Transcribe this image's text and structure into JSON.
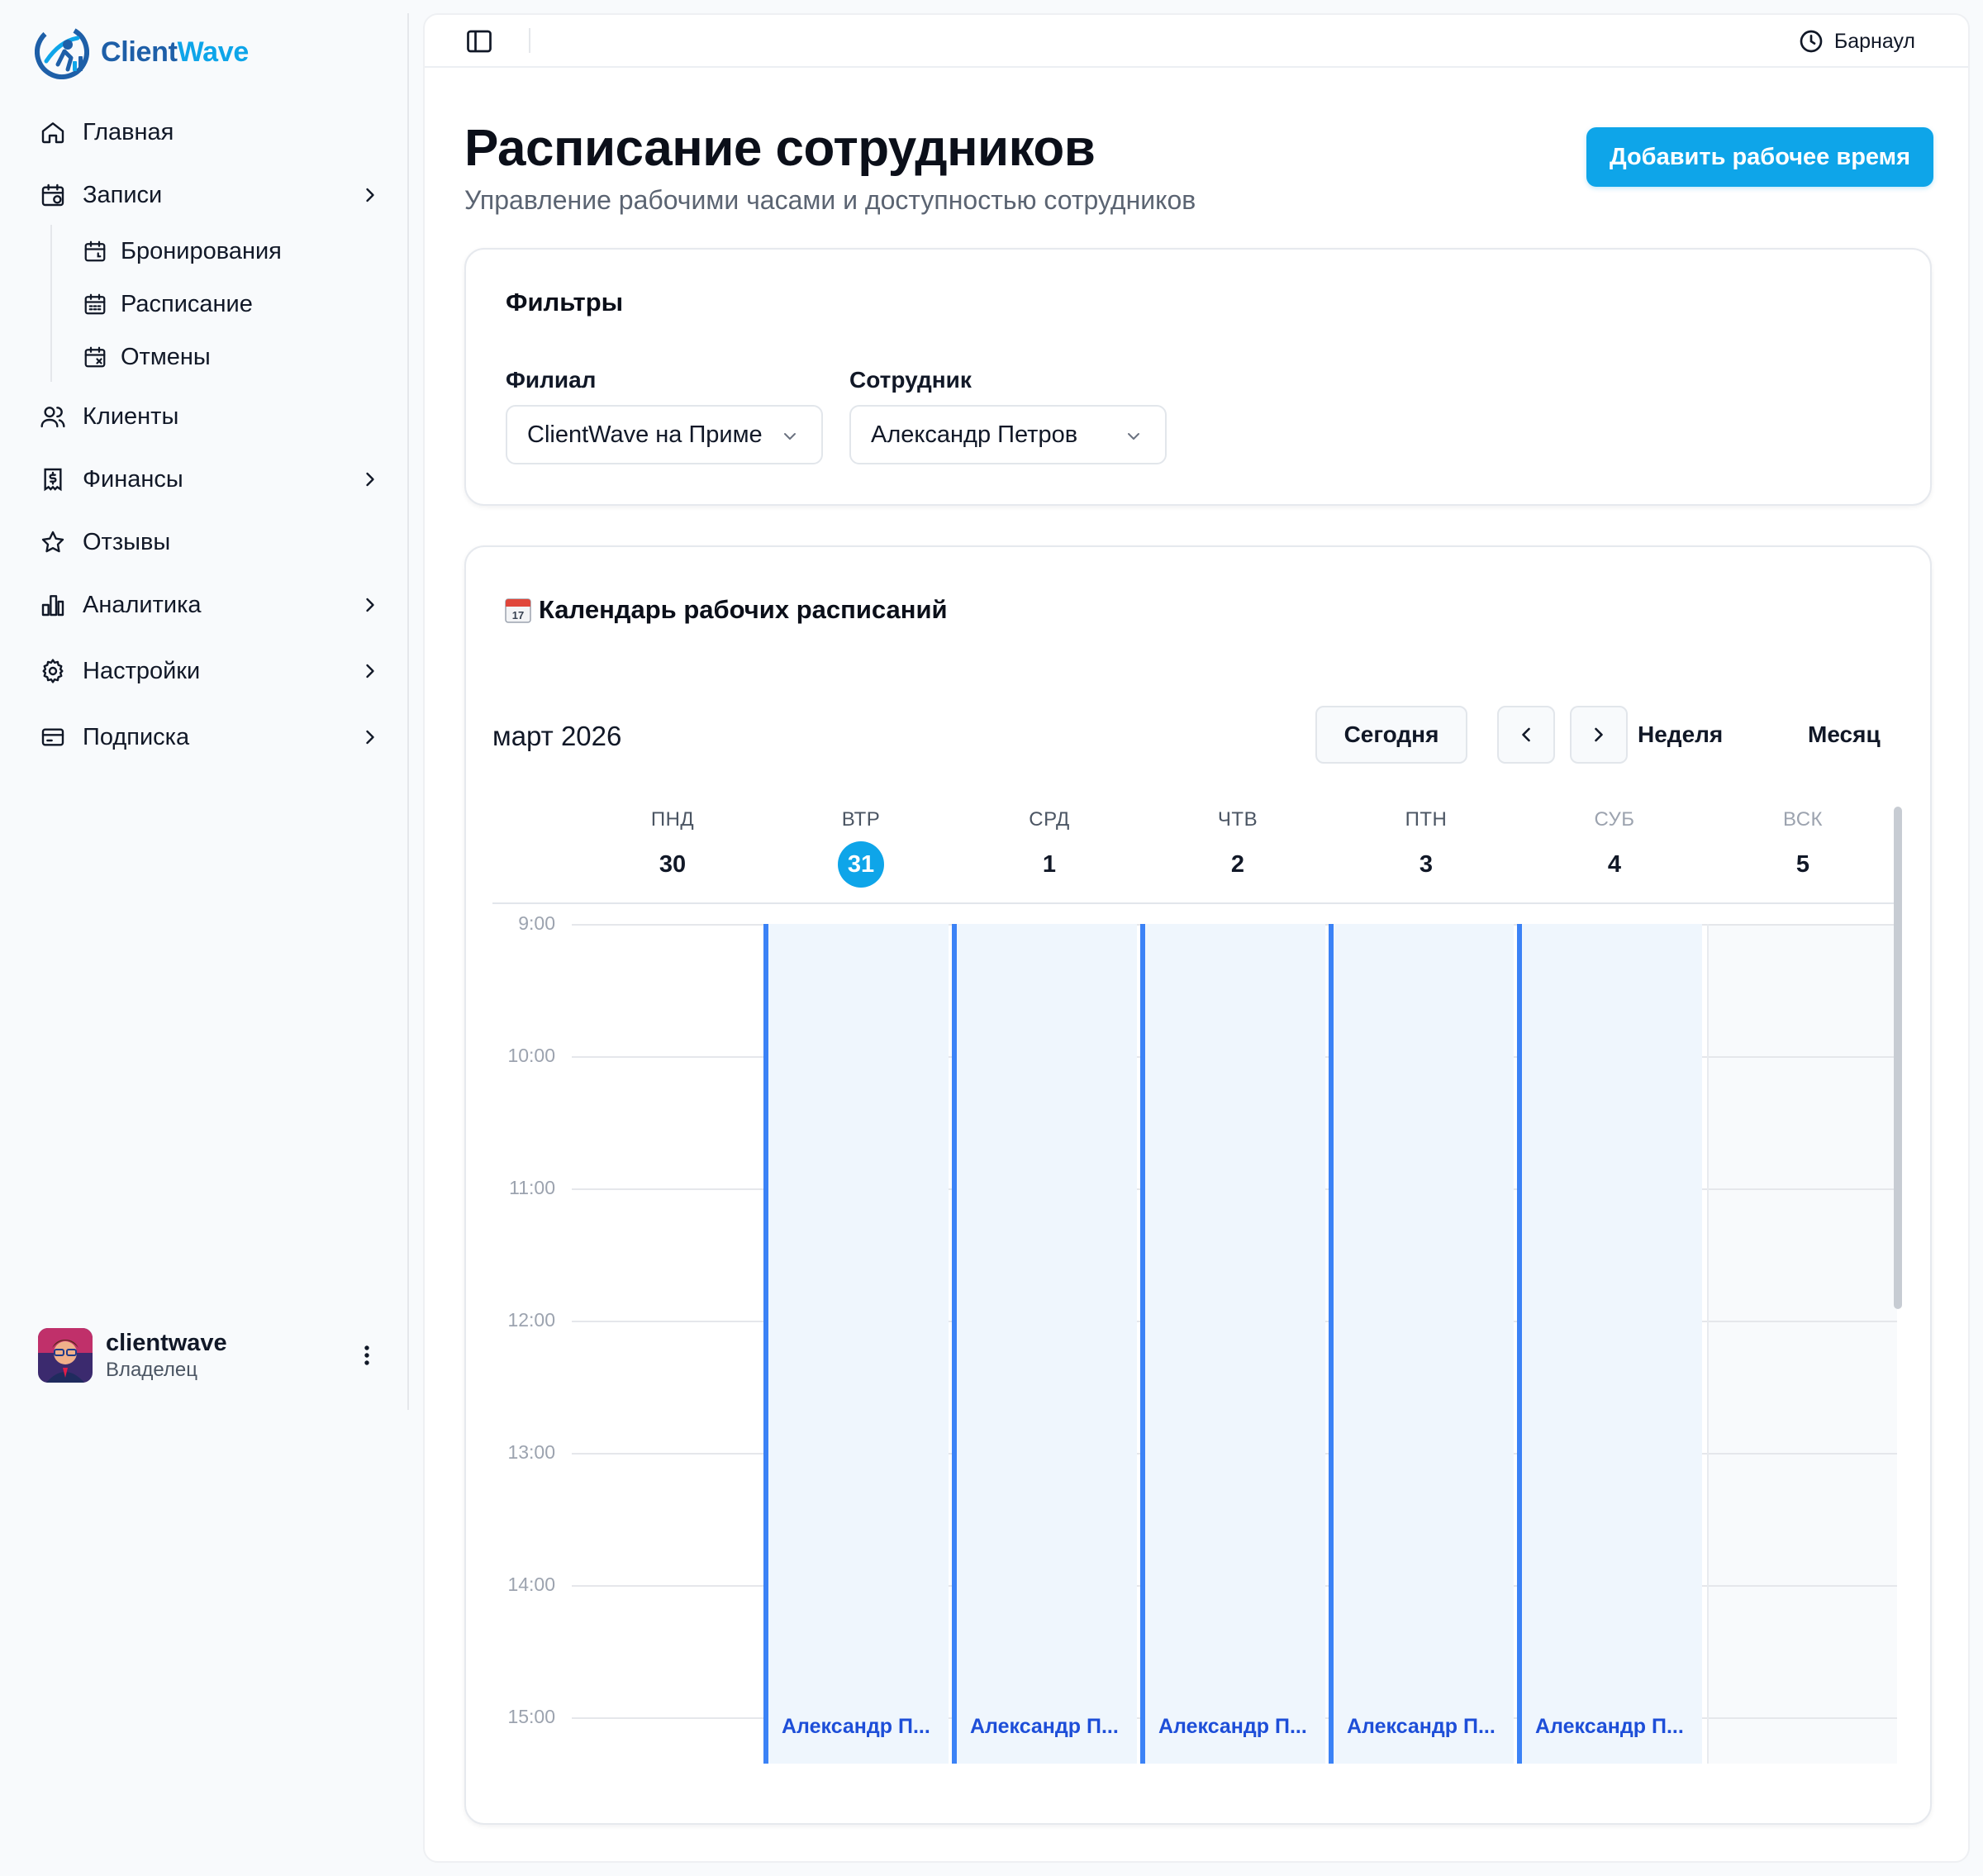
{
  "app": {
    "name_part1": "Client",
    "name_part2": "Wave",
    "brand_colors": {
      "primary": "#1e5fa8",
      "accent": "#0ea5e9"
    }
  },
  "sidebar": {
    "items": [
      {
        "label": "Главная",
        "icon": "home-icon"
      },
      {
        "label": "Записи",
        "icon": "calendar-icon",
        "has_children": true
      },
      {
        "label": "Клиенты",
        "icon": "users-icon"
      },
      {
        "label": "Финансы",
        "icon": "receipt-icon",
        "has_children": true
      },
      {
        "label": "Отзывы",
        "icon": "star-icon"
      },
      {
        "label": "Аналитика",
        "icon": "bar-chart-icon",
        "has_children": true
      },
      {
        "label": "Настройки",
        "icon": "gear-icon",
        "has_children": true
      },
      {
        "label": "Подписка",
        "icon": "credit-card-icon",
        "has_children": true
      }
    ],
    "subitems": [
      {
        "label": "Бронирования",
        "icon": "calendar-clock-icon"
      },
      {
        "label": "Расписание",
        "icon": "calendar-grid-icon"
      },
      {
        "label": "Отмены",
        "icon": "calendar-x-icon"
      }
    ],
    "user": {
      "name": "clientwave",
      "role": "Владелец"
    }
  },
  "topbar": {
    "timezone": "Барнаул"
  },
  "page": {
    "title": "Расписание сотрудников",
    "subtitle": "Управление рабочими часами и доступностью сотрудников",
    "add_button": "Добавить рабочее время"
  },
  "filters": {
    "title": "Фильтры",
    "branch_label": "Филиал",
    "branch_value": "ClientWave на Приме",
    "employee_label": "Сотрудник",
    "employee_value": "Александр Петров"
  },
  "calendar": {
    "title": "Календарь рабочих расписаний",
    "month": "март 2026",
    "today_button": "Сегодня",
    "view_week": "Неделя",
    "view_month": "Месяц",
    "days": [
      {
        "name": "ПНД",
        "num": "30"
      },
      {
        "name": "ВТР",
        "num": "31",
        "today": true
      },
      {
        "name": "СРД",
        "num": "1"
      },
      {
        "name": "ЧТВ",
        "num": "2"
      },
      {
        "name": "ПТН",
        "num": "3"
      },
      {
        "name": "СУБ",
        "num": "4",
        "weekend": true
      },
      {
        "name": "ВСК",
        "num": "5",
        "weekend": true
      }
    ],
    "times": [
      "9:00",
      "10:00",
      "11:00",
      "12:00",
      "13:00",
      "14:00",
      "15:00"
    ],
    "events": [
      {
        "day_index": 1,
        "label": "Александр П...",
        "start": "9:00"
      },
      {
        "day_index": 2,
        "label": "Александр П...",
        "start": "9:00"
      },
      {
        "day_index": 3,
        "label": "Александр П...",
        "start": "9:00"
      },
      {
        "day_index": 4,
        "label": "Александр П...",
        "start": "9:00"
      },
      {
        "day_index": 5,
        "label": "Александр П...",
        "start": "9:00"
      }
    ],
    "colors": {
      "today": "#0ea5e9",
      "event_border": "#3b82f6",
      "event_bg": "#eff6fd",
      "event_text": "#1d4ed8"
    }
  }
}
